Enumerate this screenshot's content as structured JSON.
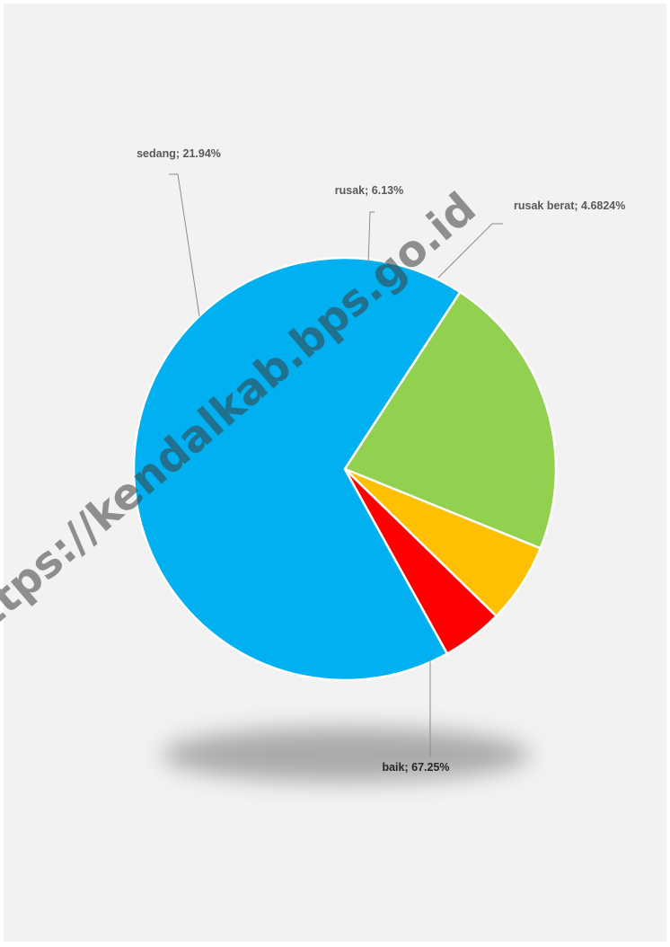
{
  "chart_data": {
    "type": "pie",
    "title": "",
    "slices": [
      {
        "name": "baik",
        "label": "baik; 67.25%",
        "value": 67.25,
        "color": "#00b0f0"
      },
      {
        "name": "sedang",
        "label": "sedang; 21.94%",
        "value": 21.94,
        "color": "#92d050"
      },
      {
        "name": "rusak",
        "label": "rusak; 6.13%",
        "value": 6.13,
        "color": "#ffc000"
      },
      {
        "name": "rusak berat",
        "label": "rusak berat; 4.6824%",
        "value": 4.6824,
        "color": "#ff0000"
      }
    ],
    "legend": "none",
    "data_labels": "outside with leader lines"
  },
  "watermark": "https://kendalkab.bps.go.id"
}
